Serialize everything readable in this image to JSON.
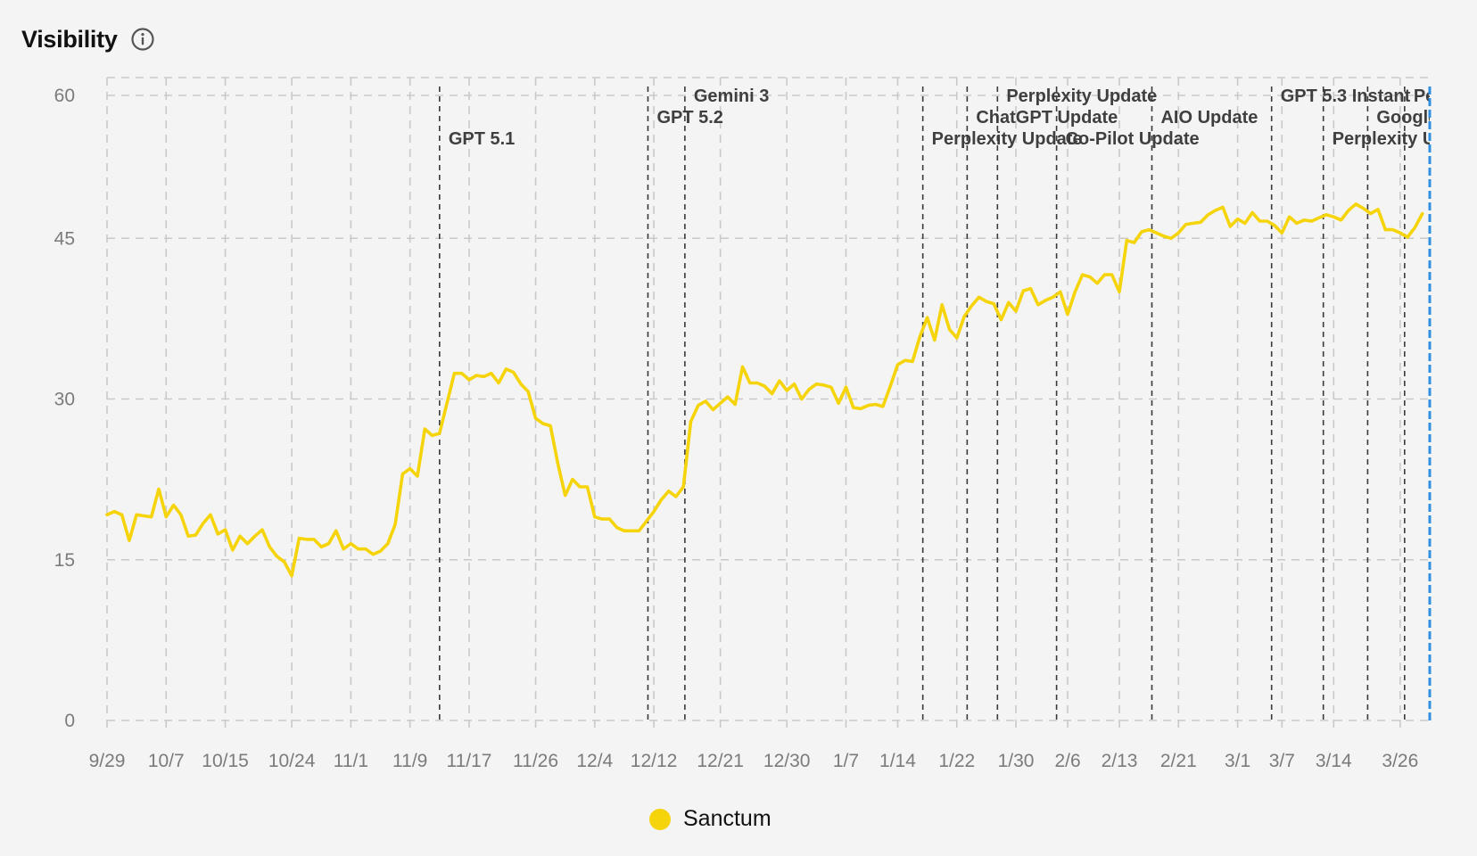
{
  "header": {
    "title": "Visibility",
    "info_icon": "info-icon"
  },
  "legend": {
    "label": "Sanctum",
    "color": "#f6d40b"
  },
  "colors": {
    "line": "#f6d40b",
    "grid": "#c9c9c9",
    "event_line": "#3a3a3a",
    "current_marker": "#2f8fe0",
    "background": "#f4f4f4"
  },
  "chart_data": {
    "type": "line",
    "title": "Visibility",
    "xlabel": "",
    "ylabel": "",
    "ylim": [
      0,
      60
    ],
    "yticks": [
      0,
      15,
      30,
      45,
      60
    ],
    "x_start": "9/29",
    "x_end": "3/28",
    "x_ticks": [
      {
        "label": "9/29",
        "day": 0
      },
      {
        "label": "10/7",
        "day": 8
      },
      {
        "label": "10/15",
        "day": 16
      },
      {
        "label": "10/24",
        "day": 25
      },
      {
        "label": "11/1",
        "day": 33
      },
      {
        "label": "11/9",
        "day": 41
      },
      {
        "label": "11/17",
        "day": 49
      },
      {
        "label": "11/26",
        "day": 58
      },
      {
        "label": "12/4",
        "day": 66
      },
      {
        "label": "12/12",
        "day": 74
      },
      {
        "label": "12/21",
        "day": 83
      },
      {
        "label": "12/30",
        "day": 92
      },
      {
        "label": "1/7",
        "day": 100
      },
      {
        "label": "1/14",
        "day": 107
      },
      {
        "label": "1/22",
        "day": 115
      },
      {
        "label": "1/30",
        "day": 123
      },
      {
        "label": "2/6",
        "day": 130
      },
      {
        "label": "2/13",
        "day": 137
      },
      {
        "label": "2/21",
        "day": 145
      },
      {
        "label": "3/1",
        "day": 153
      },
      {
        "label": "3/7",
        "day": 159
      },
      {
        "label": "3/14",
        "day": 166
      },
      {
        "label": "3/26",
        "day": 175
      }
    ],
    "grid": true,
    "legend_position": "bottom-center",
    "series": [
      {
        "name": "Sanctum",
        "values": [
          19.2,
          19.5,
          19.2,
          16.8,
          19.2,
          19.1,
          19.0,
          21.6,
          19.0,
          20.1,
          19.2,
          17.2,
          17.3,
          18.4,
          19.2,
          17.4,
          17.8,
          15.9,
          17.2,
          16.5,
          17.2,
          17.8,
          16.2,
          15.3,
          14.8,
          13.5,
          17.0,
          16.9,
          16.9,
          16.2,
          16.5,
          17.7,
          16.0,
          16.5,
          16.0,
          16.0,
          15.5,
          15.8,
          16.5,
          18.3,
          23.0,
          23.5,
          22.8,
          27.2,
          26.6,
          26.8,
          29.6,
          32.4,
          32.4,
          31.8,
          32.2,
          32.1,
          32.4,
          31.5,
          32.8,
          32.5,
          31.4,
          30.7,
          28.2,
          27.7,
          27.5,
          24.0,
          21.0,
          22.5,
          21.8,
          21.8,
          19.0,
          18.8,
          18.8,
          18.0,
          17.7,
          17.7,
          17.7,
          18.6,
          19.5,
          20.6,
          21.4,
          20.9,
          21.8,
          27.9,
          29.4,
          29.8,
          29.0,
          29.6,
          30.2,
          29.5,
          33.0,
          31.5,
          31.5,
          31.2,
          30.5,
          31.7,
          30.8,
          31.4,
          30.0,
          30.9,
          31.4,
          31.3,
          31.1,
          29.6,
          31.1,
          29.2,
          29.1,
          29.4,
          29.5,
          29.3,
          31.2,
          33.2,
          33.6,
          33.5,
          35.8,
          37.6,
          35.5,
          38.8,
          36.5,
          35.7,
          37.7,
          38.7,
          39.5,
          39.1,
          38.9,
          37.4,
          39.0,
          38.2,
          40.1,
          40.3,
          38.8,
          39.2,
          39.5,
          40.0,
          37.9,
          40.0,
          41.6,
          41.4,
          40.8,
          41.6,
          41.6,
          40.0,
          44.8,
          44.6,
          45.6,
          45.8,
          45.5,
          45.2,
          45.0,
          45.5,
          46.3,
          46.4,
          46.5,
          47.2,
          47.6,
          47.9,
          46.1,
          46.8,
          46.4,
          47.4,
          46.6,
          46.6,
          46.2,
          45.5,
          47.0,
          46.4,
          46.7,
          46.6,
          46.9,
          47.2,
          47.0,
          46.7,
          47.6,
          48.2,
          47.8,
          47.3,
          47.7,
          45.8,
          45.8,
          45.5,
          45.1,
          46.0,
          47.3
        ]
      }
    ],
    "events": [
      {
        "label": "GPT 5.1",
        "day": 45.0,
        "row": 2,
        "anchor": "start"
      },
      {
        "label": "GPT 5.2",
        "day": 73.2,
        "row": 1,
        "anchor": "start"
      },
      {
        "label": "Gemini 3",
        "day": 78.2,
        "row": 0,
        "anchor": "start"
      },
      {
        "label": "Perplexity Update",
        "day": 110.4,
        "row": 2,
        "anchor": "start"
      },
      {
        "label": "ChatGPT Update",
        "day": 116.4,
        "row": 1,
        "anchor": "start"
      },
      {
        "label": "Perplexity Update",
        "day": 120.5,
        "row": 0,
        "anchor": "start"
      },
      {
        "label": "Co-Pilot Update",
        "day": 128.5,
        "row": 2,
        "anchor": "start"
      },
      {
        "label": "AIO Update",
        "day": 141.4,
        "row": 1,
        "anchor": "start"
      },
      {
        "label": "GPT 5.3 Instant",
        "day": 157.6,
        "row": 0,
        "anchor": "start"
      },
      {
        "label": "Perplexity Update",
        "day": 164.6,
        "row": 2,
        "anchor": "start"
      },
      {
        "label": "Google Core",
        "day": 170.6,
        "row": 1,
        "anchor": "start"
      },
      {
        "label": "Perplexity",
        "day": 175.6,
        "row": 0,
        "anchor": "start"
      }
    ],
    "current_marker_day": 179
  }
}
